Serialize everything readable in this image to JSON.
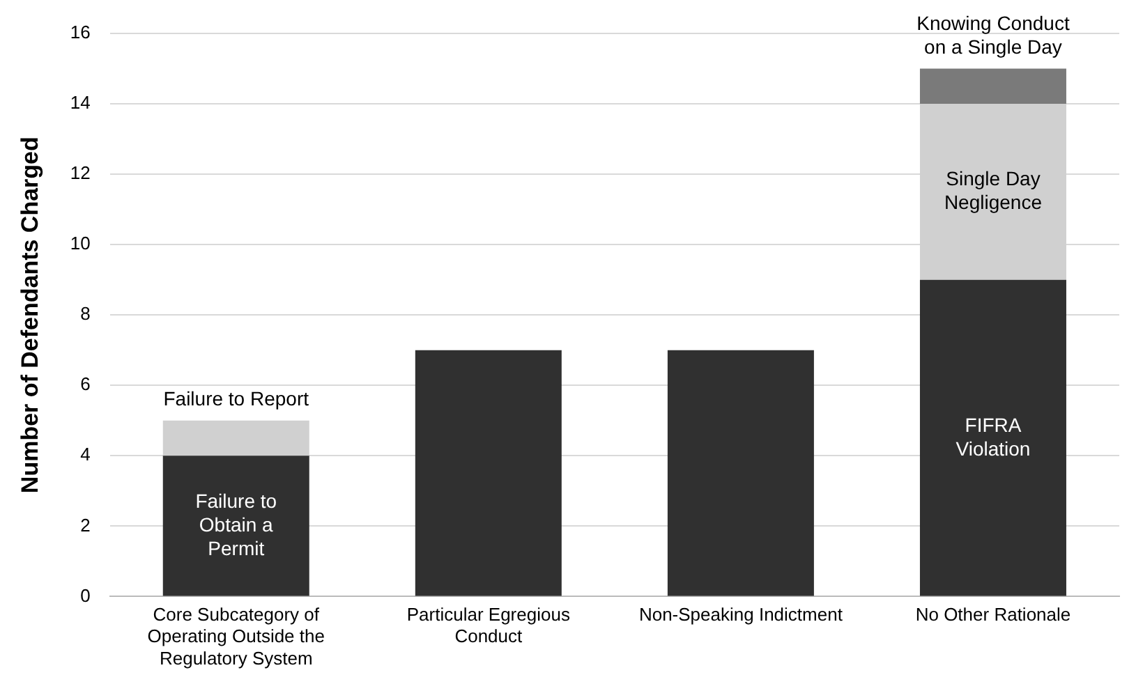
{
  "chart_data": {
    "type": "bar",
    "stacked": true,
    "ylabel": "Number of Defendants Charged",
    "categories": [
      "Core Subcategory of Operating Outside the Regulatory System",
      "Particular Egregious Conduct",
      "Non-Speaking Indictment",
      "No Other Rationale"
    ],
    "series": [
      {
        "color": "#303030",
        "values": [
          4,
          7,
          7,
          9
        ],
        "value_labels": [
          "Failure to Obtain a Permit",
          null,
          null,
          "FIFRA Violation"
        ]
      },
      {
        "color": "#d0d0d0",
        "values": [
          1,
          null,
          null,
          5
        ],
        "value_labels": [
          "Failure to Report",
          null,
          null,
          "Single Day Negligence"
        ]
      },
      {
        "color": "#7a7a7a",
        "values": [
          null,
          null,
          null,
          1
        ],
        "value_labels": [
          null,
          null,
          null,
          "Knowing Conduct on a Single Day"
        ]
      }
    ],
    "ylim": [
      0,
      16
    ],
    "yticks": [
      0,
      2,
      4,
      6,
      8,
      10,
      12,
      14,
      16
    ],
    "grid": "y",
    "legend": false
  }
}
